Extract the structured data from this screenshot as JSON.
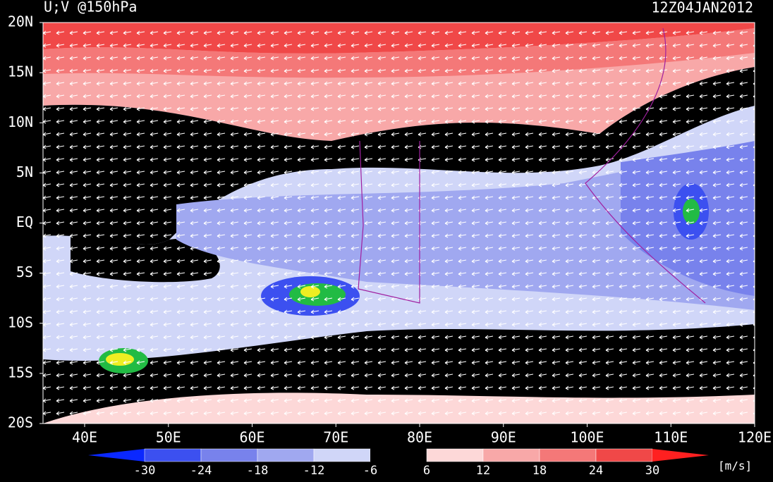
{
  "header": {
    "title": "U;V @150hPa",
    "time": "12Z04JAN2012"
  },
  "lat_labels": [
    "20N",
    "15N",
    "10N",
    "5N",
    "EQ",
    "5S",
    "10S",
    "15S",
    "20S"
  ],
  "lon_labels": [
    "40E",
    "50E",
    "60E",
    "70E",
    "80E",
    "90E",
    "100E",
    "110E",
    "120E"
  ],
  "colorbar": {
    "labels": [
      -30,
      -24,
      -18,
      -12,
      -6,
      6,
      12,
      18,
      24,
      30
    ],
    "colors": [
      "#0a28ff",
      "#3c50f0",
      "#7882ec",
      "#a0a8f0",
      "#d0d6f8",
      "#000000",
      "#fdd8d8",
      "#f8a8a8",
      "#f47878",
      "#f04848",
      "#ff2020"
    ],
    "unit": "[m/s]"
  }
}
